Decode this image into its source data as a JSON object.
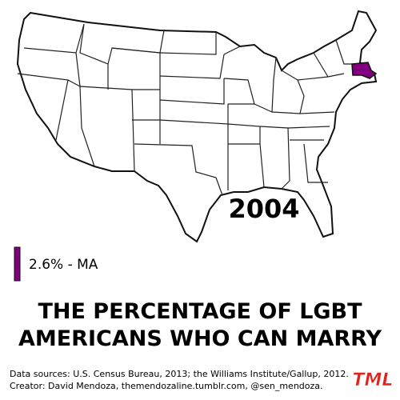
{
  "map": {
    "year": "2004",
    "highlighted_state": "MA"
  },
  "legend": {
    "value": 2.6,
    "label": "2.6% - MA",
    "color": "#800080"
  },
  "title": {
    "line1": "THE PERCENTAGE OF LGBT",
    "line2": "AMERICANS WHO CAN MARRY"
  },
  "footer": {
    "sources": "Data sources: U.S. Census Bureau, 2013; the Williams Institute/Gallup, 2012.",
    "creator": "Creator: David Mendoza, themendozaline.tumblr.com, @sen_mendoza.",
    "logo": "TML"
  }
}
